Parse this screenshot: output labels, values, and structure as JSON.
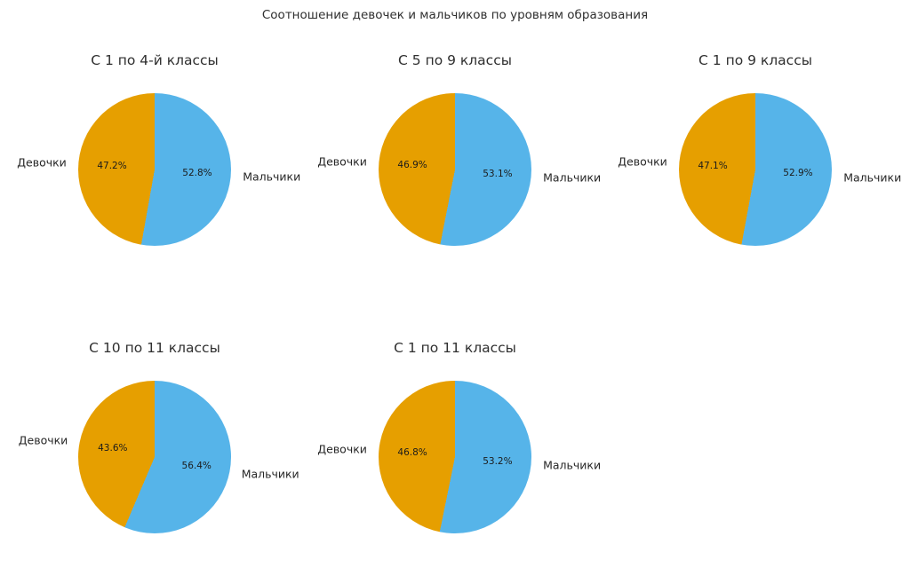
{
  "page": {
    "background": "#ffffff",
    "text_color": "#2f2f2f"
  },
  "chart_data": {
    "type": "pie",
    "main_title": "Соотношение девочек и мальчиков по уровням образования",
    "layout": {
      "columns": 3,
      "rows": 2,
      "start_angle": "top",
      "direction": "clockwise",
      "legend": "off",
      "labels": "outside",
      "percent_labels": "inside"
    },
    "palette": {
      "boys_color": "#56B4E9",
      "girls_color": "#E69F00"
    },
    "charts": [
      {
        "title": "С 1 по 4-й классы",
        "slices": [
          {
            "label": "Мальчики",
            "value_pct": 52.8,
            "color": "#56B4E9"
          },
          {
            "label": "Девочки",
            "value_pct": 47.2,
            "color": "#E69F00"
          }
        ]
      },
      {
        "title": "С 5 по 9 классы",
        "slices": [
          {
            "label": "Мальчики",
            "value_pct": 53.1,
            "color": "#56B4E9"
          },
          {
            "label": "Девочки",
            "value_pct": 46.9,
            "color": "#E69F00"
          }
        ]
      },
      {
        "title": "С 1 по 9 классы",
        "slices": [
          {
            "label": "Мальчики",
            "value_pct": 52.9,
            "color": "#56B4E9"
          },
          {
            "label": "Девочки",
            "value_pct": 47.1,
            "color": "#E69F00"
          }
        ]
      },
      {
        "title": "С 10 по 11 классы",
        "slices": [
          {
            "label": "Мальчики",
            "value_pct": 56.4,
            "color": "#56B4E9"
          },
          {
            "label": "Девочки",
            "value_pct": 43.6,
            "color": "#E69F00"
          }
        ]
      },
      {
        "title": "С 1 по 11 классы",
        "slices": [
          {
            "label": "Мальчики",
            "value_pct": 53.2,
            "color": "#56B4E9"
          },
          {
            "label": "Девочки",
            "value_pct": 46.8,
            "color": "#E69F00"
          }
        ]
      }
    ]
  }
}
